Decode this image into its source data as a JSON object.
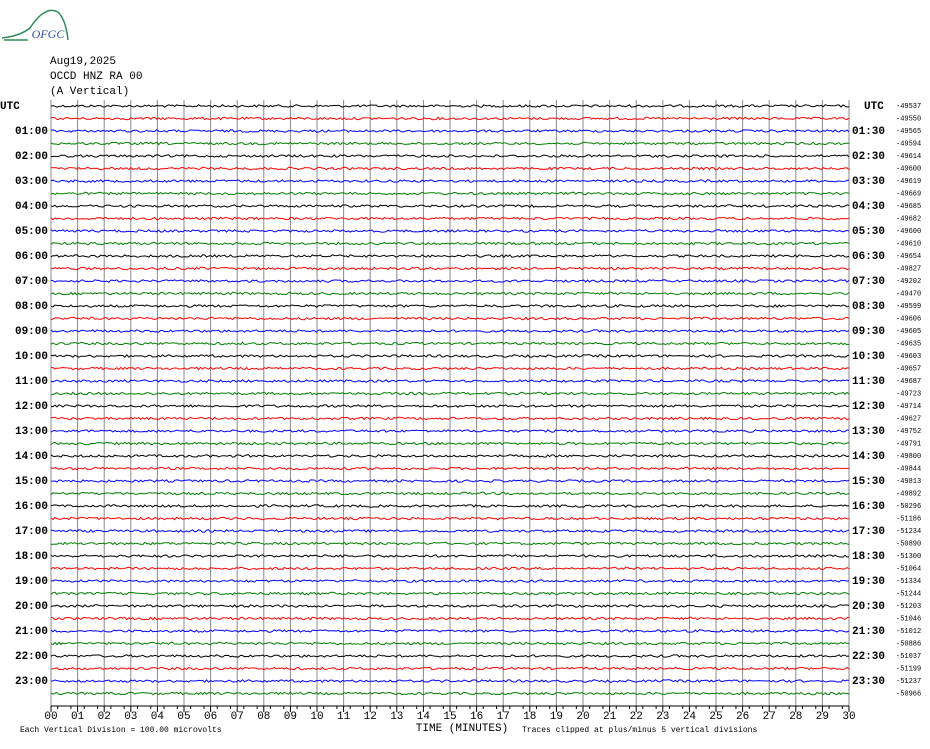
{
  "header": {
    "logo": "OFGC",
    "date": "Aug19,2025",
    "station": "OCCD HNZ RA 00",
    "component": "(A Vertical)"
  },
  "chart_data": {
    "type": "helicorder",
    "left_labels": [
      "UTC",
      "01:00",
      "02:00",
      "03:00",
      "04:00",
      "05:00",
      "06:00",
      "07:00",
      "08:00",
      "09:00",
      "10:00",
      "11:00",
      "12:00",
      "13:00",
      "14:00",
      "15:00",
      "16:00",
      "17:00",
      "18:00",
      "19:00",
      "20:00",
      "21:00",
      "22:00",
      "23:00"
    ],
    "right_labels": [
      "UTC",
      "01:30",
      "02:30",
      "03:30",
      "04:30",
      "05:30",
      "06:30",
      "07:30",
      "08:30",
      "09:30",
      "10:30",
      "11:30",
      "12:30",
      "13:30",
      "14:30",
      "15:30",
      "16:30",
      "17:30",
      "18:30",
      "19:30",
      "20:30",
      "21:30",
      "22:30",
      "23:30"
    ],
    "offsets": [
      -49537,
      -49550,
      -49565,
      -49594,
      -49614,
      -49600,
      -49619,
      -49669,
      -49685,
      -49682,
      -49600,
      -49610,
      -49654,
      -49827,
      -49202,
      -49470,
      -49599,
      -49606,
      -49605,
      -49635,
      -49603,
      -49657,
      -49687,
      -49723,
      -49714,
      -49627,
      -49752,
      -49791,
      -49800,
      -49844,
      -49813,
      -49892,
      -50296,
      -51186,
      -51234,
      -50890,
      -51300,
      -51064,
      -51334,
      -51244,
      -51203,
      -51046,
      -51012,
      -50886,
      -51037,
      -51199,
      -51237,
      -50966
    ],
    "xlim": [
      0,
      30
    ],
    "xticks": [
      {
        "value": 0,
        "label": "00"
      },
      {
        "value": 1,
        "label": "01"
      },
      {
        "value": 2,
        "label": "02"
      },
      {
        "value": 3,
        "label": "03"
      },
      {
        "value": 4,
        "label": "04"
      },
      {
        "value": 5,
        "label": "05"
      },
      {
        "value": 6,
        "label": "06"
      },
      {
        "value": 7,
        "label": "07"
      },
      {
        "value": 8,
        "label": "08"
      },
      {
        "value": 9,
        "label": "09"
      },
      10,
      11,
      12,
      13,
      14,
      15,
      16,
      17,
      18,
      19,
      20,
      21,
      22,
      23,
      24,
      25,
      26,
      27,
      28,
      29,
      30
    ],
    "xlabel": "TIME (MINUTES)",
    "trace_colors": [
      "#000000",
      "#ff0000",
      "#0000ff",
      "#008000"
    ],
    "grid": true
  },
  "footer": {
    "scale_note": "Each Vertical Division =  100.00 microvolts",
    "clip_note": "Traces clipped at plus/minus 5 vertical divisions"
  }
}
